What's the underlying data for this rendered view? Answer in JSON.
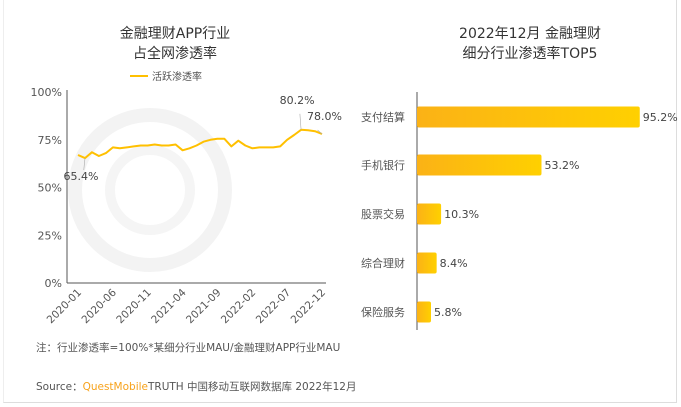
{
  "watermark": "QUESTMOBILE",
  "left_chart": {
    "title_line1": "金融理财APP行业",
    "title_line2": "占全网渗透率"
  },
  "right_chart": {
    "title_line1": "2022年12月 金融理财",
    "title_line2": "细分行业渗透率TOP5"
  },
  "footer": {
    "note": "注：行业渗透率=100%*某细分行业MAU/金融理财APP行业MAU",
    "source_prefix": "Source：",
    "source_brand": "QuestMobile",
    "source_rest": "TRUTH 中国移动互联网数据库 2022年12月"
  },
  "colors": {
    "accent": "#FFC000",
    "bar_start": "#FBB216",
    "bar_end": "#FFD000",
    "brand": "#F7A21B"
  },
  "chart_data": [
    {
      "type": "line",
      "title": "金融理财APP行业占全网渗透率",
      "series": [
        {
          "name": "活跃渗透率",
          "values": [
            67,
            65.4,
            68.5,
            66.5,
            68,
            71,
            70.5,
            71,
            71.5,
            72,
            72,
            72.5,
            72,
            72,
            72.5,
            69.5,
            70.5,
            72,
            74,
            75,
            75.5,
            75.5,
            71.5,
            74.5,
            72,
            70.5,
            71,
            71,
            71,
            71.5,
            75,
            77.5,
            80.2,
            80,
            79.5,
            78.0
          ]
        }
      ],
      "x_start": "2020-01",
      "x_end": "2022-12",
      "x_tick_labels": [
        "2020-01",
        "2020-06",
        "2020-11",
        "2021-04",
        "2021-09",
        "2022-02",
        "2022-07",
        "2022-12"
      ],
      "y_tick_labels": [
        "0%",
        "25%",
        "50%",
        "75%",
        "100%"
      ],
      "ylim": [
        0,
        100
      ],
      "data_labels": [
        {
          "index": 1,
          "text": "65.4%"
        },
        {
          "index": 32,
          "text": "80.2%"
        },
        {
          "index": 35,
          "text": "78.0%"
        }
      ],
      "grid": false,
      "legend": "top"
    },
    {
      "type": "bar",
      "orientation": "horizontal",
      "title": "2022年12月 金融理财细分行业渗透率TOP5",
      "categories": [
        "支付结算",
        "手机银行",
        "股票交易",
        "综合理财",
        "保险服务"
      ],
      "values": [
        95.2,
        53.2,
        10.3,
        8.4,
        5.8
      ],
      "value_labels": [
        "95.2%",
        "53.2%",
        "10.3%",
        "8.4%",
        "5.8%"
      ],
      "grid": false
    }
  ]
}
